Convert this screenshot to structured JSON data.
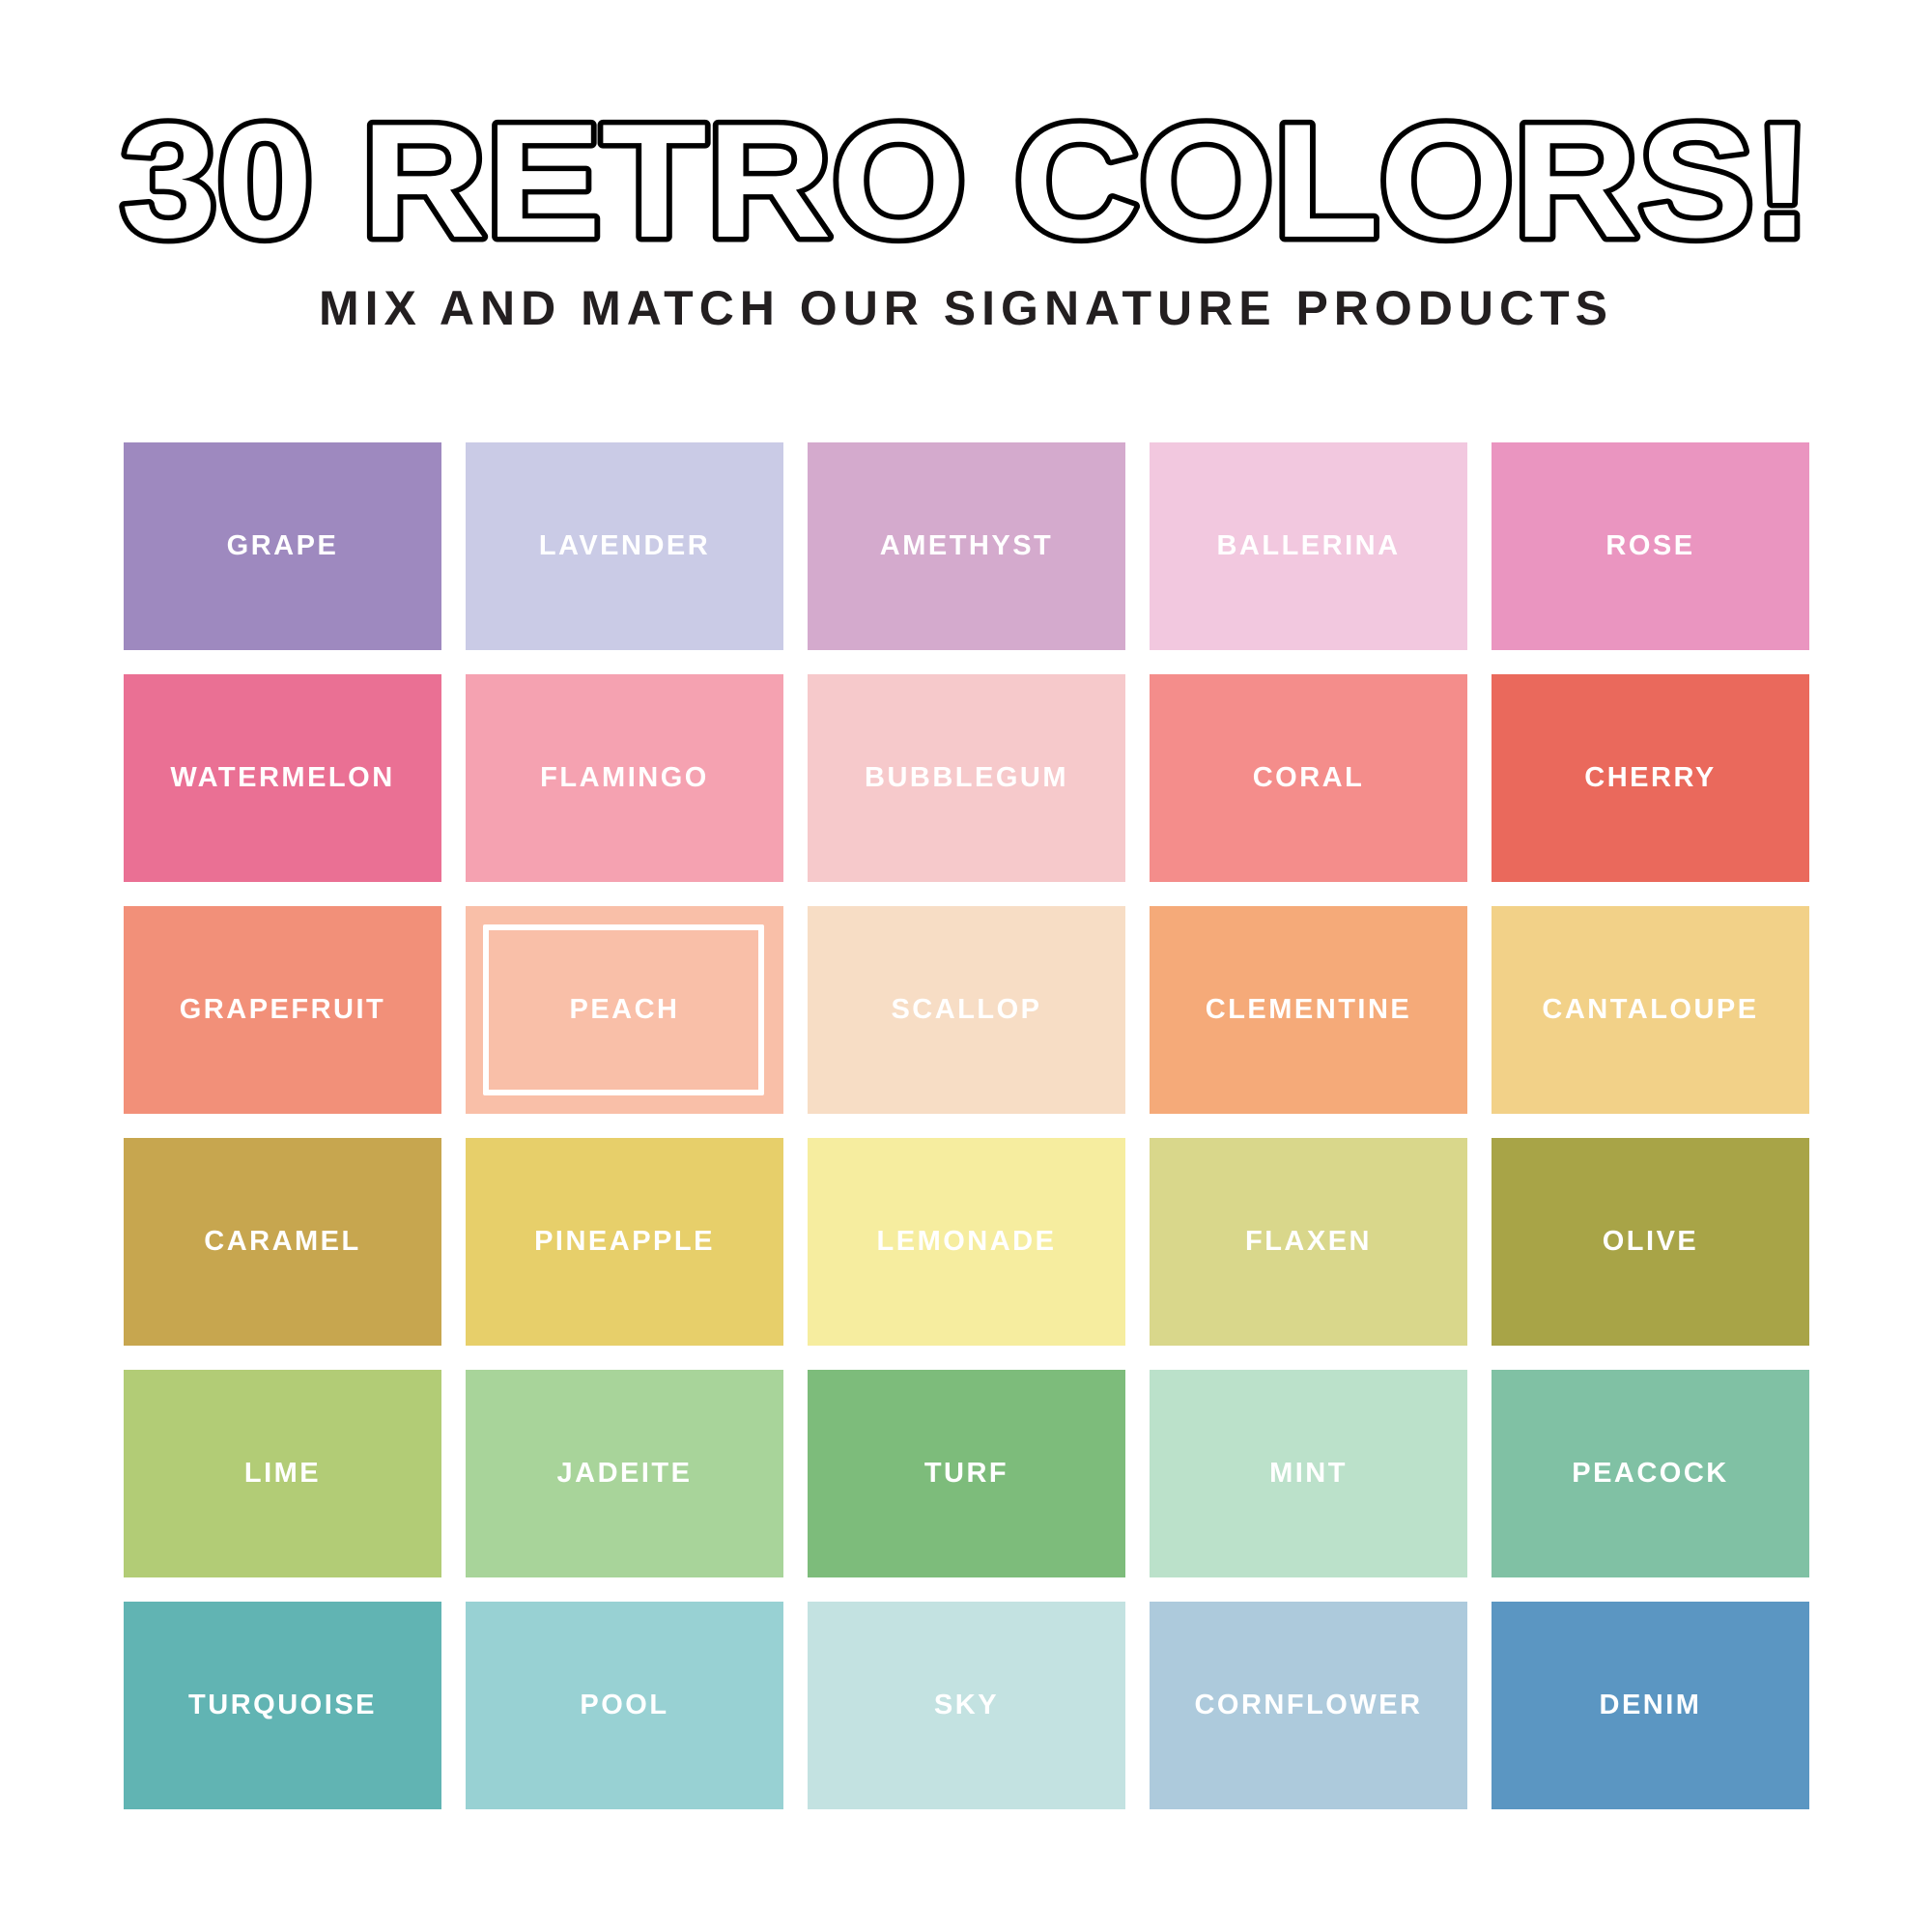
{
  "header": {
    "title": "30 RETRO COLORS!",
    "subtitle": "MIX AND MATCH OUR SIGNATURE PRODUCTS"
  },
  "selected": "PEACH",
  "swatches": [
    {
      "name": "GRAPE",
      "color": "#9e89bf"
    },
    {
      "name": "LAVENDER",
      "color": "#cacbe6"
    },
    {
      "name": "AMETHYST",
      "color": "#d4aacd"
    },
    {
      "name": "BALLERINA",
      "color": "#f2c8df"
    },
    {
      "name": "ROSE",
      "color": "#ea95c0"
    },
    {
      "name": "WATERMELON",
      "color": "#ea7094"
    },
    {
      "name": "FLAMINGO",
      "color": "#f5a2b1"
    },
    {
      "name": "BUBBLEGUM",
      "color": "#f6c9cb"
    },
    {
      "name": "CORAL",
      "color": "#f48d8b"
    },
    {
      "name": "CHERRY",
      "color": "#ea695c"
    },
    {
      "name": "GRAPEFRUIT",
      "color": "#f29079"
    },
    {
      "name": "PEACH",
      "color": "#f9bfa8"
    },
    {
      "name": "SCALLOP",
      "color": "#f7ddc5"
    },
    {
      "name": "CLEMENTINE",
      "color": "#f5aa79"
    },
    {
      "name": "CANTALOUPE",
      "color": "#f2d188"
    },
    {
      "name": "CARAMEL",
      "color": "#c7a64f"
    },
    {
      "name": "PINEAPPLE",
      "color": "#e7cf6a"
    },
    {
      "name": "LEMONADE",
      "color": "#f6ed9f"
    },
    {
      "name": "FLAXEN",
      "color": "#d9d78b"
    },
    {
      "name": "OLIVE",
      "color": "#a8a447"
    },
    {
      "name": "LIME",
      "color": "#b2cc76"
    },
    {
      "name": "JADEITE",
      "color": "#a8d49a"
    },
    {
      "name": "TURF",
      "color": "#7dbc7b"
    },
    {
      "name": "MINT",
      "color": "#bbe1ca"
    },
    {
      "name": "PEACOCK",
      "color": "#80c1a4"
    },
    {
      "name": "TURQUOISE",
      "color": "#61b4b3"
    },
    {
      "name": "POOL",
      "color": "#98d1d3"
    },
    {
      "name": "SKY",
      "color": "#c3e2e1"
    },
    {
      "name": "CORNFLOWER",
      "color": "#adcadc"
    },
    {
      "name": "DENIM",
      "color": "#5b96c2"
    }
  ]
}
